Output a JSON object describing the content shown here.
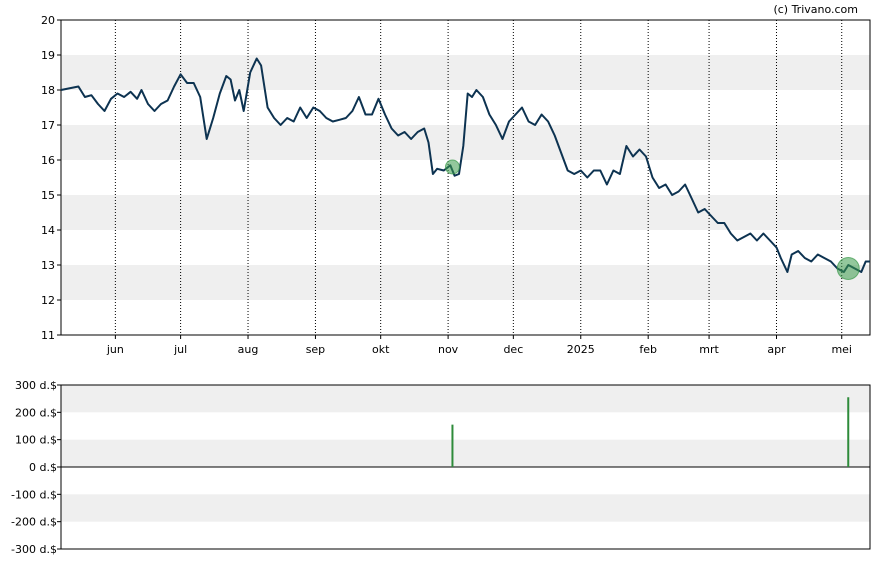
{
  "credit": "(c) Trivano.com",
  "colors": {
    "line": "#0d3351",
    "band": "#efefef",
    "marker": "#3a9a4a",
    "bar": "#2e8b3a"
  },
  "chart_data": [
    {
      "type": "line",
      "title": "",
      "ylim": [
        11,
        20
      ],
      "y_ticks": [
        "20",
        "19",
        "18",
        "17",
        "16",
        "15",
        "14",
        "13",
        "12",
        "11"
      ],
      "x_range": [
        "2024-05-07",
        "2025-05-14"
      ],
      "x_ticks": [
        {
          "label": "jun",
          "date": "2024-06-01"
        },
        {
          "label": "jul",
          "date": "2024-07-01"
        },
        {
          "label": "aug",
          "date": "2024-08-01"
        },
        {
          "label": "sep",
          "date": "2024-09-01"
        },
        {
          "label": "okt",
          "date": "2024-10-01"
        },
        {
          "label": "nov",
          "date": "2024-11-01"
        },
        {
          "label": "dec",
          "date": "2024-12-01"
        },
        {
          "label": "2025",
          "date": "2025-01-01"
        },
        {
          "label": "feb",
          "date": "2025-02-01"
        },
        {
          "label": "mrt",
          "date": "2025-03-01"
        },
        {
          "label": "apr",
          "date": "2025-04-01"
        },
        {
          "label": "mei",
          "date": "2025-05-01"
        }
      ],
      "grid": "horizontal bands, dotted vertical month lines",
      "series": [
        {
          "points": [
            [
              "2024-05-07",
              18.0
            ],
            [
              "2024-05-15",
              18.1
            ],
            [
              "2024-05-18",
              17.8
            ],
            [
              "2024-05-21",
              17.85
            ],
            [
              "2024-05-24",
              17.6
            ],
            [
              "2024-05-27",
              17.4
            ],
            [
              "2024-05-30",
              17.75
            ],
            [
              "2024-06-02",
              17.9
            ],
            [
              "2024-06-05",
              17.8
            ],
            [
              "2024-06-08",
              17.95
            ],
            [
              "2024-06-11",
              17.75
            ],
            [
              "2024-06-13",
              18.0
            ],
            [
              "2024-06-16",
              17.6
            ],
            [
              "2024-06-19",
              17.4
            ],
            [
              "2024-06-22",
              17.6
            ],
            [
              "2024-06-25",
              17.7
            ],
            [
              "2024-06-28",
              18.1
            ],
            [
              "2024-07-01",
              18.45
            ],
            [
              "2024-07-04",
              18.2
            ],
            [
              "2024-07-07",
              18.2
            ],
            [
              "2024-07-10",
              17.8
            ],
            [
              "2024-07-13",
              16.6
            ],
            [
              "2024-07-16",
              17.2
            ],
            [
              "2024-07-19",
              17.9
            ],
            [
              "2024-07-22",
              18.4
            ],
            [
              "2024-07-24",
              18.3
            ],
            [
              "2024-07-26",
              17.7
            ],
            [
              "2024-07-28",
              18.0
            ],
            [
              "2024-07-30",
              17.4
            ],
            [
              "2024-08-02",
              18.5
            ],
            [
              "2024-08-05",
              18.9
            ],
            [
              "2024-08-07",
              18.7
            ],
            [
              "2024-08-10",
              17.5
            ],
            [
              "2024-08-13",
              17.2
            ],
            [
              "2024-08-16",
              17.0
            ],
            [
              "2024-08-19",
              17.2
            ],
            [
              "2024-08-22",
              17.1
            ],
            [
              "2024-08-25",
              17.5
            ],
            [
              "2024-08-28",
              17.2
            ],
            [
              "2024-08-31",
              17.5
            ],
            [
              "2024-09-03",
              17.4
            ],
            [
              "2024-09-06",
              17.2
            ],
            [
              "2024-09-09",
              17.1
            ],
            [
              "2024-09-12",
              17.15
            ],
            [
              "2024-09-15",
              17.2
            ],
            [
              "2024-09-18",
              17.4
            ],
            [
              "2024-09-21",
              17.8
            ],
            [
              "2024-09-24",
              17.3
            ],
            [
              "2024-09-27",
              17.3
            ],
            [
              "2024-09-30",
              17.75
            ],
            [
              "2024-10-03",
              17.3
            ],
            [
              "2024-10-06",
              16.9
            ],
            [
              "2024-10-09",
              16.7
            ],
            [
              "2024-10-12",
              16.8
            ],
            [
              "2024-10-15",
              16.6
            ],
            [
              "2024-10-18",
              16.8
            ],
            [
              "2024-10-21",
              16.9
            ],
            [
              "2024-10-23",
              16.5
            ],
            [
              "2024-10-25",
              15.6
            ],
            [
              "2024-10-27",
              15.75
            ],
            [
              "2024-10-30",
              15.7
            ],
            [
              "2024-11-02",
              15.85
            ],
            [
              "2024-11-04",
              15.55
            ],
            [
              "2024-11-06",
              15.6
            ],
            [
              "2024-11-08",
              16.4
            ],
            [
              "2024-11-10",
              17.9
            ],
            [
              "2024-11-12",
              17.8
            ],
            [
              "2024-11-14",
              18.0
            ],
            [
              "2024-11-17",
              17.8
            ],
            [
              "2024-11-20",
              17.3
            ],
            [
              "2024-11-23",
              17.0
            ],
            [
              "2024-11-26",
              16.6
            ],
            [
              "2024-11-29",
              17.1
            ],
            [
              "2024-12-02",
              17.3
            ],
            [
              "2024-12-05",
              17.5
            ],
            [
              "2024-12-08",
              17.1
            ],
            [
              "2024-12-11",
              17.0
            ],
            [
              "2024-12-14",
              17.3
            ],
            [
              "2024-12-17",
              17.1
            ],
            [
              "2024-12-20",
              16.7
            ],
            [
              "2024-12-23",
              16.2
            ],
            [
              "2024-12-26",
              15.7
            ],
            [
              "2024-12-29",
              15.6
            ],
            [
              "2025-01-01",
              15.7
            ],
            [
              "2025-01-04",
              15.5
            ],
            [
              "2025-01-07",
              15.7
            ],
            [
              "2025-01-10",
              15.7
            ],
            [
              "2025-01-13",
              15.3
            ],
            [
              "2025-01-16",
              15.7
            ],
            [
              "2025-01-19",
              15.6
            ],
            [
              "2025-01-22",
              16.4
            ],
            [
              "2025-01-25",
              16.1
            ],
            [
              "2025-01-28",
              16.3
            ],
            [
              "2025-01-31",
              16.1
            ],
            [
              "2025-02-03",
              15.5
            ],
            [
              "2025-02-06",
              15.2
            ],
            [
              "2025-02-09",
              15.3
            ],
            [
              "2025-02-12",
              15.0
            ],
            [
              "2025-02-15",
              15.1
            ],
            [
              "2025-02-18",
              15.3
            ],
            [
              "2025-02-21",
              14.9
            ],
            [
              "2025-02-24",
              14.5
            ],
            [
              "2025-02-27",
              14.6
            ],
            [
              "2025-03-02",
              14.4
            ],
            [
              "2025-03-05",
              14.2
            ],
            [
              "2025-03-08",
              14.2
            ],
            [
              "2025-03-11",
              13.9
            ],
            [
              "2025-03-14",
              13.7
            ],
            [
              "2025-03-17",
              13.8
            ],
            [
              "2025-03-20",
              13.9
            ],
            [
              "2025-03-23",
              13.7
            ],
            [
              "2025-03-26",
              13.9
            ],
            [
              "2025-03-29",
              13.7
            ],
            [
              "2025-04-01",
              13.5
            ],
            [
              "2025-04-03",
              13.2
            ],
            [
              "2025-04-06",
              12.8
            ],
            [
              "2025-04-08",
              13.3
            ],
            [
              "2025-04-11",
              13.4
            ],
            [
              "2025-04-14",
              13.2
            ],
            [
              "2025-04-17",
              13.1
            ],
            [
              "2025-04-20",
              13.3
            ],
            [
              "2025-04-23",
              13.2
            ],
            [
              "2025-04-26",
              13.1
            ],
            [
              "2025-04-29",
              12.9
            ],
            [
              "2025-05-02",
              12.8
            ],
            [
              "2025-05-04",
              13.0
            ],
            [
              "2025-05-07",
              12.9
            ],
            [
              "2025-05-10",
              12.8
            ],
            [
              "2025-05-12",
              13.1
            ],
            [
              "2025-05-14",
              13.1
            ]
          ]
        }
      ],
      "markers": [
        {
          "date": "2024-11-03",
          "value": 15.8,
          "size": "small"
        },
        {
          "date": "2025-05-04",
          "value": 12.9,
          "size": "large"
        }
      ]
    },
    {
      "type": "bar",
      "title": "",
      "ylim": [
        -300,
        300
      ],
      "y_ticks": [
        "300 d.$",
        "200 d.$",
        "100 d.$",
        "0 d.$",
        "-100 d.$",
        "-200 d.$",
        "-300 d.$"
      ],
      "x_range": [
        "2024-05-07",
        "2025-05-14"
      ],
      "grid": "horizontal bands",
      "bars": [
        {
          "date": "2024-11-03",
          "value": 155
        },
        {
          "date": "2025-05-04",
          "value": 255
        }
      ]
    }
  ]
}
